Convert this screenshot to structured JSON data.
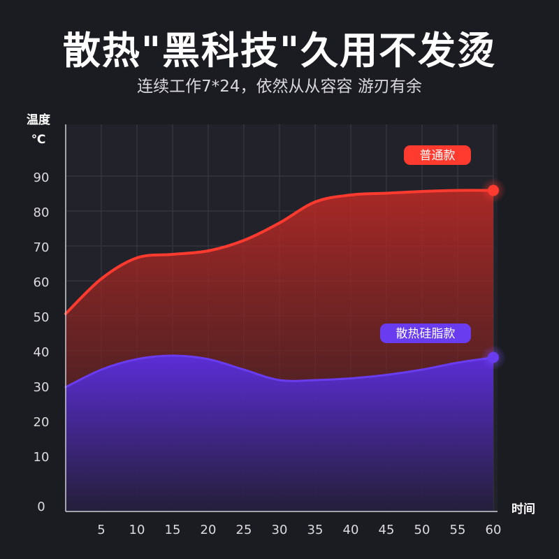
{
  "header": {
    "title": "散热\"黑科技\"久用不发烫",
    "subtitle": "连续工作7*24，依然从从容容 游刃有余"
  },
  "chart_data": {
    "type": "area",
    "ylabel_line1": "温度",
    "ylabel_line2": "℃",
    "xlabel": "时间",
    "x_ticks": [
      5,
      10,
      15,
      20,
      25,
      30,
      35,
      40,
      45,
      50,
      55,
      60
    ],
    "y_ticks": [
      0,
      10,
      20,
      30,
      40,
      50,
      60,
      70,
      80,
      90
    ],
    "xlim": [
      0,
      60
    ],
    "ylim": [
      0,
      100
    ],
    "grid": true,
    "series": [
      {
        "name": "普通款",
        "color": "#ff3b30",
        "x": [
          0,
          5,
          10,
          15,
          20,
          25,
          30,
          35,
          40,
          45,
          50,
          55,
          60
        ],
        "y": [
          55,
          65,
          71,
          72,
          73,
          76,
          81,
          87,
          89,
          89.5,
          90,
          90.3,
          90.3
        ]
      },
      {
        "name": "散热硅脂款",
        "color": "#6a3cf0",
        "x": [
          0,
          5,
          10,
          15,
          20,
          25,
          30,
          35,
          40,
          45,
          50,
          55,
          60
        ],
        "y": [
          34,
          39,
          42,
          43,
          42,
          39,
          36,
          36,
          36.5,
          37.5,
          39,
          41,
          42.5
        ]
      }
    ]
  }
}
